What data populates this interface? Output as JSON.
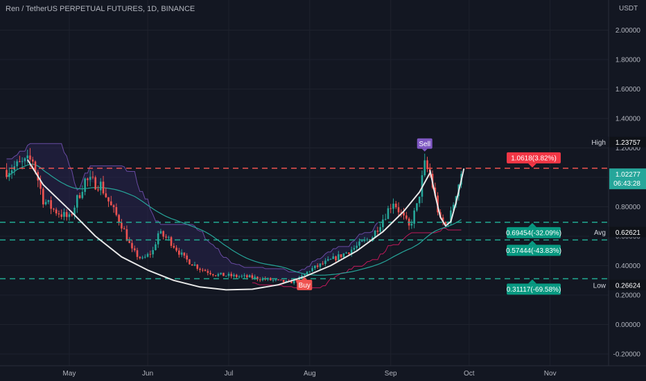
{
  "header": {
    "symbol_title": "Ren / TetherUS PERPETUAL FUTURES, 1D, BINANCE",
    "currency": "USDT"
  },
  "chart_data": {
    "type": "candlestick",
    "ylim": [
      -0.2,
      2.0
    ],
    "y_ticks": [
      "2.00000",
      "1.80000",
      "1.60000",
      "1.40000",
      "1.20000",
      "1.00000",
      "0.80000",
      "0.60000",
      "0.40000",
      "0.20000",
      "0.00000",
      "-0.20000"
    ],
    "x_ticks": [
      "May",
      "Jun",
      "Jul",
      "Aug",
      "Sep",
      "Oct",
      "Nov"
    ],
    "x_tick_days": [
      0,
      30,
      61,
      92,
      123,
      153,
      184
    ],
    "stats": [
      {
        "label": "High",
        "value": "1.23757",
        "y": 1.23757
      },
      {
        "label": "Avg",
        "value": "0.62621",
        "y": 0.62621
      },
      {
        "label": "Low",
        "value": "0.26624",
        "y": 0.26624
      }
    ],
    "current_price": {
      "value": "1.02277",
      "countdown": "06:43:28",
      "y": 1.02277
    },
    "levels": [
      {
        "y": 1.0618,
        "label": "1.0618(3.82%)",
        "color": "#f05350",
        "kind": "resistance"
      },
      {
        "y": 0.69454,
        "label": "0.69454(-32.09%)",
        "color": "#22ab94",
        "kind": "support"
      },
      {
        "y": 0.57444,
        "label": "0.57444(-43.83%)",
        "color": "#22ab94",
        "kind": "support"
      },
      {
        "y": 0.31117,
        "label": "0.31117(-69.58%)",
        "color": "#22ab94",
        "kind": "support"
      }
    ],
    "signals": [
      {
        "label": "Buy",
        "day": 90,
        "color": "#f05350"
      },
      {
        "label": "Sell",
        "day": 136,
        "color": "#7e57c2"
      }
    ],
    "trend_curve": [
      [
        -16,
        1.12
      ],
      [
        -10,
        0.95
      ],
      [
        0,
        0.78
      ],
      [
        10,
        0.6
      ],
      [
        20,
        0.46
      ],
      [
        30,
        0.37
      ],
      [
        40,
        0.3
      ],
      [
        50,
        0.255
      ],
      [
        60,
        0.236
      ],
      [
        70,
        0.24
      ],
      [
        80,
        0.27
      ],
      [
        90,
        0.325
      ],
      [
        100,
        0.4
      ],
      [
        110,
        0.5
      ],
      [
        120,
        0.63
      ],
      [
        128,
        0.77
      ],
      [
        134,
        0.9
      ],
      [
        138,
        1.03
      ]
    ],
    "v_curve": [
      [
        138,
        1.05
      ],
      [
        140,
        0.88
      ],
      [
        142,
        0.73
      ],
      [
        144,
        0.67
      ],
      [
        146,
        0.7
      ],
      [
        148,
        0.83
      ],
      [
        150,
        0.98
      ],
      [
        151,
        1.06
      ]
    ],
    "key_closes": [
      [
        -24,
        1.05
      ],
      [
        -14,
        1.12
      ],
      [
        -10,
        0.85
      ],
      [
        -6,
        0.78
      ],
      [
        0,
        0.72
      ],
      [
        6,
        0.98
      ],
      [
        12,
        0.95
      ],
      [
        16,
        0.8
      ],
      [
        20,
        0.68
      ],
      [
        24,
        0.5
      ],
      [
        28,
        0.44
      ],
      [
        32,
        0.5
      ],
      [
        34,
        0.62
      ],
      [
        38,
        0.58
      ],
      [
        44,
        0.45
      ],
      [
        50,
        0.38
      ],
      [
        56,
        0.34
      ],
      [
        62,
        0.33
      ],
      [
        70,
        0.32
      ],
      [
        78,
        0.3
      ],
      [
        84,
        0.285
      ],
      [
        88,
        0.31
      ],
      [
        92,
        0.37
      ],
      [
        98,
        0.42
      ],
      [
        104,
        0.47
      ],
      [
        110,
        0.53
      ],
      [
        116,
        0.6
      ],
      [
        120,
        0.72
      ],
      [
        124,
        0.84
      ],
      [
        127,
        0.75
      ],
      [
        130,
        0.66
      ],
      [
        133,
        0.8
      ],
      [
        136,
        1.08
      ],
      [
        138,
        1.02
      ],
      [
        140,
        0.86
      ],
      [
        142,
        0.7
      ],
      [
        144,
        0.68
      ],
      [
        146,
        0.75
      ],
      [
        148,
        0.9
      ],
      [
        150,
        1.02277
      ]
    ],
    "start_day": -24,
    "end_day": 150
  },
  "colors": {
    "background": "#131722",
    "up": "#26a69a",
    "down": "#ef5350",
    "grid": "#1e222d",
    "axis_text": "#b2b5be",
    "ma": "#26a69a",
    "channel_line": "#7e57c2",
    "channel_fill": "#2a2450",
    "trail_line": "#c2185b"
  }
}
